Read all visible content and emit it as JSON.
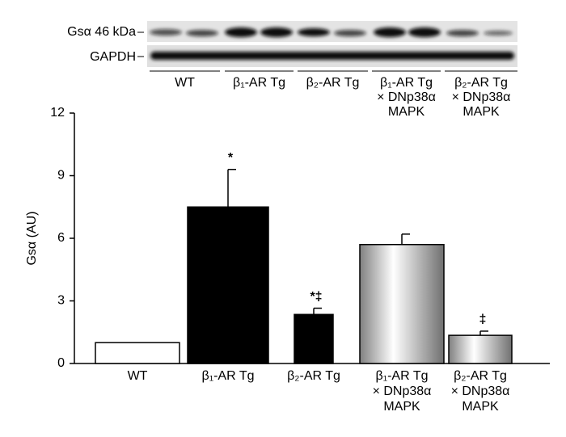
{
  "blot": {
    "labels": [
      "Gsα 46 kDa",
      "GAPDH"
    ]
  },
  "chart_data": {
    "type": "bar",
    "y_label": "Gsα (AU)",
    "categories": [
      [
        "WT"
      ],
      [
        "β₁-AR Tg"
      ],
      [
        "β₂-AR Tg"
      ],
      [
        "β₁-AR Tg",
        "× DNp38α",
        "MAPK"
      ],
      [
        "β₂-AR Tg",
        "× DNp38α",
        "MAPK"
      ]
    ],
    "values": [
      1.0,
      7.5,
      2.35,
      5.7,
      1.35
    ],
    "errors": [
      null,
      1.8,
      0.3,
      0.5,
      0.2
    ],
    "annotations": [
      null,
      "*",
      "*‡",
      null,
      "‡"
    ],
    "colors": [
      "#ffffff",
      "#000000",
      "#000000",
      "#a8a8a8",
      "#a8a8a8"
    ],
    "gradient": [
      false,
      false,
      false,
      true,
      true
    ],
    "ylim": [
      0,
      12
    ],
    "yticks": [
      0,
      3,
      6,
      9,
      12
    ]
  }
}
